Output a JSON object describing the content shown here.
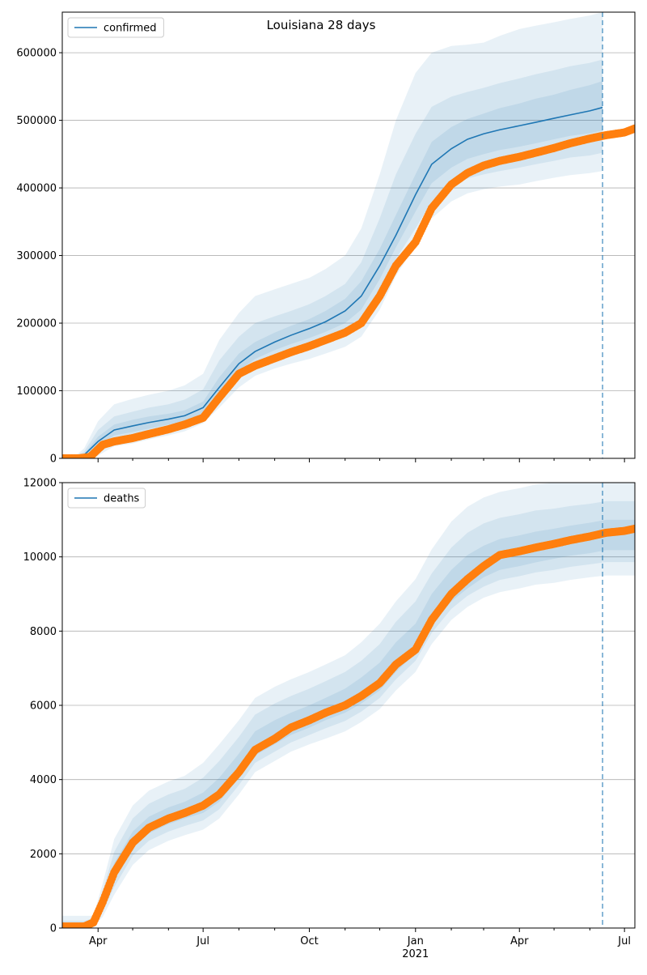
{
  "figure": {
    "title": "Louisiana 28 days"
  },
  "chart_data": [
    {
      "type": "line",
      "name": "confirmed-panel",
      "legend": {
        "label": "confirmed",
        "placement": "top-left"
      },
      "grid": {
        "y": true,
        "x": false
      },
      "xlim": [
        "2020-03-01",
        "2021-07-10"
      ],
      "ylim": [
        0,
        660000
      ],
      "yticks": [
        0,
        100000,
        200000,
        300000,
        400000,
        500000,
        600000
      ],
      "ytick_labels": [
        "0",
        "100000",
        "200000",
        "300000",
        "400000",
        "500000",
        "600000"
      ],
      "forecast_start": "2021-06-12",
      "forecast_line_color": "#1f77b4",
      "band_color": "#1f77b4",
      "series": [
        {
          "name": "confirmed",
          "role": "model",
          "color": "#1f77b4",
          "x": [
            "2020-03-01",
            "2020-03-10",
            "2020-03-20",
            "2020-04-01",
            "2020-04-15",
            "2020-05-01",
            "2020-05-15",
            "2020-06-01",
            "2020-06-15",
            "2020-07-01",
            "2020-07-15",
            "2020-08-01",
            "2020-08-15",
            "2020-09-01",
            "2020-09-15",
            "2020-10-01",
            "2020-10-15",
            "2020-11-01",
            "2020-11-15",
            "2020-12-01",
            "2020-12-15",
            "2021-01-01",
            "2021-01-15",
            "2021-02-01",
            "2021-02-15",
            "2021-03-01",
            "2021-03-15",
            "2021-04-01",
            "2021-04-15",
            "2021-05-01",
            "2021-05-15",
            "2021-06-01",
            "2021-06-12"
          ],
          "y": [
            0,
            0,
            5000,
            25000,
            42000,
            48000,
            53000,
            58000,
            63000,
            75000,
            105000,
            140000,
            158000,
            172000,
            182000,
            192000,
            202000,
            218000,
            240000,
            285000,
            330000,
            390000,
            435000,
            458000,
            472000,
            480000,
            486000,
            492000,
            497000,
            503000,
            508000,
            514000,
            519000
          ]
        },
        {
          "name": "observed",
          "role": "observed",
          "color": "#ff7f0e",
          "x": [
            "2020-03-01",
            "2020-03-15",
            "2020-03-25",
            "2020-04-05",
            "2020-04-15",
            "2020-05-01",
            "2020-05-15",
            "2020-06-01",
            "2020-06-15",
            "2020-07-01",
            "2020-07-15",
            "2020-08-01",
            "2020-08-15",
            "2020-09-01",
            "2020-09-15",
            "2020-10-01",
            "2020-10-15",
            "2020-11-01",
            "2020-11-15",
            "2020-12-01",
            "2020-12-15",
            "2021-01-01",
            "2021-01-15",
            "2021-02-01",
            "2021-02-15",
            "2021-03-01",
            "2021-03-15",
            "2021-04-01",
            "2021-04-15",
            "2021-05-01",
            "2021-05-15",
            "2021-06-01",
            "2021-06-15",
            "2021-07-01",
            "2021-07-10"
          ],
          "y": [
            0,
            0,
            2000,
            20000,
            25000,
            30000,
            36000,
            43000,
            50000,
            60000,
            90000,
            125000,
            137000,
            148000,
            157000,
            166000,
            175000,
            186000,
            200000,
            240000,
            285000,
            320000,
            370000,
            405000,
            422000,
            433000,
            440000,
            446000,
            452000,
            459000,
            466000,
            473000,
            478000,
            482000,
            488000
          ]
        }
      ],
      "bands": [
        {
          "level": "outer",
          "opacity": 0.1,
          "lower": [
            0,
            0,
            0,
            4000,
            18000,
            22000,
            28000,
            34000,
            40000,
            52000,
            75000,
            105000,
            122000,
            133000,
            140000,
            147000,
            155000,
            165000,
            180000,
            220000,
            270000,
            315000,
            355000,
            380000,
            392000,
            398000,
            402000,
            405000,
            410000,
            415000,
            419000,
            422000,
            425000
          ],
          "upper": [
            0,
            0,
            15000,
            55000,
            80000,
            88000,
            94000,
            100000,
            108000,
            125000,
            175000,
            215000,
            240000,
            250000,
            258000,
            267000,
            280000,
            300000,
            340000,
            420000,
            500000,
            570000,
            600000,
            610000,
            612000,
            615000,
            625000,
            635000,
            640000,
            645000,
            650000,
            655000,
            660000
          ]
        },
        {
          "level": "middle",
          "opacity": 0.1,
          "lower": [
            0,
            0,
            1000,
            12000,
            26000,
            30000,
            36000,
            42000,
            48000,
            60000,
            86000,
            118000,
            136000,
            147000,
            155000,
            163000,
            172000,
            183000,
            200000,
            245000,
            295000,
            340000,
            380000,
            402000,
            414000,
            420000,
            425000,
            430000,
            435000,
            440000,
            445000,
            448000,
            452000
          ],
          "upper": [
            0,
            0,
            10000,
            42000,
            62000,
            69000,
            75000,
            80000,
            87000,
            102000,
            145000,
            180000,
            200000,
            210000,
            218000,
            228000,
            240000,
            258000,
            290000,
            355000,
            420000,
            480000,
            520000,
            535000,
            542000,
            548000,
            555000,
            562000,
            568000,
            574000,
            580000,
            585000,
            590000
          ]
        },
        {
          "level": "inner",
          "opacity": 0.1,
          "lower": [
            0,
            0,
            3000,
            18000,
            34000,
            39000,
            44000,
            50000,
            55000,
            67000,
            95000,
            129000,
            147000,
            160000,
            169000,
            178000,
            187000,
            200000,
            220000,
            265000,
            312000,
            365000,
            407000,
            430000,
            443000,
            450000,
            456000,
            461000,
            466000,
            472000,
            477000,
            481000,
            485000
          ],
          "upper": [
            0,
            0,
            7000,
            32000,
            50000,
            57000,
            62000,
            66000,
            71000,
            84000,
            120000,
            155000,
            172000,
            186000,
            196000,
            206000,
            218000,
            236000,
            262000,
            310000,
            360000,
            420000,
            468000,
            490000,
            502000,
            510000,
            518000,
            525000,
            532000,
            538000,
            545000,
            552000,
            558000
          ]
        }
      ]
    },
    {
      "type": "line",
      "name": "deaths-panel",
      "legend": {
        "label": "deaths",
        "placement": "top-left"
      },
      "grid": {
        "y": true,
        "x": false
      },
      "xlim": [
        "2020-03-01",
        "2021-07-10"
      ],
      "ylim": [
        0,
        12000
      ],
      "yticks": [
        0,
        2000,
        4000,
        6000,
        8000,
        10000,
        12000
      ],
      "ytick_labels": [
        "0",
        "2000",
        "4000",
        "6000",
        "8000",
        "10000",
        "12000"
      ],
      "xticks": [
        "2020-04-01",
        "2020-07-01",
        "2020-10-01",
        "2021-01-01",
        "2021-04-01",
        "2021-07-01"
      ],
      "xtick_labels": [
        "Apr",
        "Jul",
        "Oct",
        "Jan",
        "Apr",
        "Jul"
      ],
      "xtick_sublabel": {
        "date": "2021-01-01",
        "text": "2021"
      },
      "minor_xticks": [
        "2020-05-01",
        "2020-06-01",
        "2020-08-01",
        "2020-09-01",
        "2020-11-01",
        "2020-12-01",
        "2021-02-01",
        "2021-03-01",
        "2021-05-01",
        "2021-06-01"
      ],
      "forecast_start": "2021-06-12",
      "forecast_line_color": "#1f77b4",
      "band_color": "#1f77b4",
      "series": [
        {
          "name": "observed",
          "role": "observed",
          "color": "#ff7f0e",
          "x": [
            "2020-03-01",
            "2020-03-20",
            "2020-03-28",
            "2020-04-05",
            "2020-04-15",
            "2020-05-01",
            "2020-05-15",
            "2020-06-01",
            "2020-06-15",
            "2020-07-01",
            "2020-07-15",
            "2020-08-01",
            "2020-08-15",
            "2020-09-01",
            "2020-09-15",
            "2020-10-01",
            "2020-10-15",
            "2020-11-01",
            "2020-11-15",
            "2020-12-01",
            "2020-12-15",
            "2021-01-01",
            "2021-01-15",
            "2021-02-01",
            "2021-02-15",
            "2021-03-01",
            "2021-03-15",
            "2021-04-01",
            "2021-04-15",
            "2021-05-01",
            "2021-05-15",
            "2021-06-01",
            "2021-06-15",
            "2021-07-01",
            "2021-07-10"
          ],
          "y": [
            40,
            40,
            150,
            700,
            1500,
            2300,
            2700,
            2950,
            3100,
            3300,
            3600,
            4200,
            4800,
            5100,
            5400,
            5600,
            5800,
            6000,
            6250,
            6600,
            7100,
            7500,
            8300,
            9000,
            9400,
            9750,
            10050,
            10150,
            10250,
            10350,
            10450,
            10550,
            10650,
            10700,
            10760
          ]
        }
      ],
      "bands": [
        {
          "level": "outer",
          "opacity": 0.1,
          "lower": [
            0,
            0,
            40,
            300,
            900,
            1700,
            2100,
            2350,
            2500,
            2650,
            2950,
            3600,
            4200,
            4500,
            4750,
            4950,
            5100,
            5300,
            5550,
            5900,
            6400,
            6900,
            7650,
            8300,
            8650,
            8900,
            9050,
            9150,
            9250,
            9300,
            9380,
            9450,
            9500,
            9500,
            9500
          ],
          "upper": [
            330,
            330,
            330,
            1200,
            2400,
            3300,
            3700,
            3950,
            4100,
            4450,
            4950,
            5600,
            6200,
            6500,
            6700,
            6900,
            7100,
            7350,
            7700,
            8200,
            8800,
            9400,
            10200,
            10950,
            11350,
            11600,
            11750,
            11850,
            11950,
            12000,
            12000,
            12000,
            12000,
            12000,
            12000
          ]
        },
        {
          "level": "middle",
          "opacity": 0.1,
          "lower": [
            0,
            0,
            80,
            450,
            1100,
            1950,
            2350,
            2600,
            2750,
            2900,
            3200,
            3850,
            4450,
            4750,
            5000,
            5200,
            5380,
            5580,
            5830,
            6200,
            6700,
            7200,
            7950,
            8600,
            8950,
            9200,
            9380,
            9480,
            9580,
            9650,
            9730,
            9800,
            9860,
            9860,
            9860
          ],
          "upper": [
            200,
            200,
            260,
            1000,
            2050,
            2950,
            3350,
            3600,
            3750,
            4050,
            4500,
            5150,
            5750,
            6050,
            6250,
            6450,
            6650,
            6900,
            7200,
            7650,
            8250,
            8800,
            9550,
            10250,
            10650,
            10900,
            11050,
            11150,
            11250,
            11300,
            11370,
            11430,
            11500,
            11500,
            11500
          ]
        },
        {
          "level": "inner",
          "opacity": 0.1,
          "lower": [
            20,
            20,
            110,
            580,
            1300,
            2150,
            2550,
            2800,
            2950,
            3100,
            3400,
            4050,
            4650,
            4950,
            5200,
            5400,
            5600,
            5800,
            6050,
            6400,
            6900,
            7400,
            8150,
            8800,
            9150,
            9450,
            9650,
            9750,
            9850,
            9950,
            10030,
            10100,
            10180,
            10180,
            10180
          ],
          "upper": [
            120,
            120,
            200,
            850,
            1750,
            2600,
            3000,
            3250,
            3400,
            3650,
            4050,
            4700,
            5300,
            5600,
            5800,
            6000,
            6200,
            6450,
            6750,
            7150,
            7700,
            8200,
            9000,
            9650,
            10050,
            10300,
            10480,
            10580,
            10680,
            10760,
            10840,
            10920,
            11000,
            11000,
            11000
          ]
        }
      ]
    }
  ]
}
